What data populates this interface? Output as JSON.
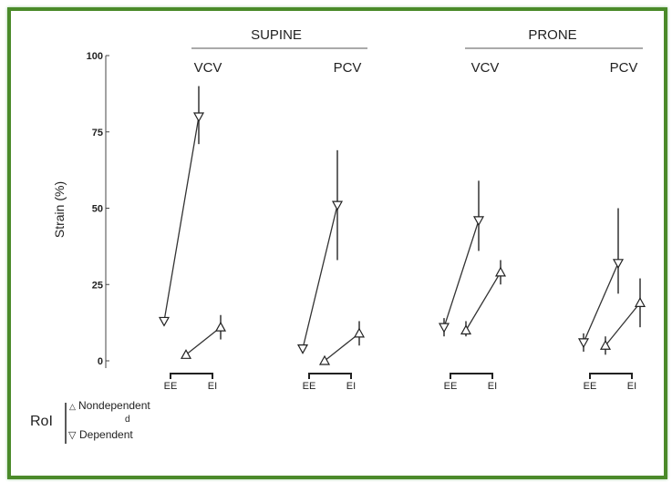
{
  "chart_data": {
    "type": "line",
    "ylabel": "Strain (%)",
    "ylim": [
      0,
      100
    ],
    "yticks": [
      "0",
      "25",
      "50",
      "75",
      "100"
    ],
    "x_categories": [
      "EE",
      "EI"
    ],
    "x_tick_labels": {
      "ee": "EE",
      "ei": "EI"
    },
    "groups": [
      {
        "position": "SUPINE",
        "mode": "VCV",
        "dependent": {
          "values": [
            13,
            80
          ],
          "err": [
            [
              13,
              13
            ],
            [
              71,
              90
            ]
          ]
        },
        "nondependent": {
          "values": [
            2,
            11
          ],
          "err": [
            [
              2,
              2
            ],
            [
              7,
              15
            ]
          ]
        }
      },
      {
        "position": "SUPINE",
        "mode": "PCV",
        "dependent": {
          "values": [
            4,
            51
          ],
          "err": [
            [
              4,
              4
            ],
            [
              33,
              69
            ]
          ]
        },
        "nondependent": {
          "values": [
            0,
            9
          ],
          "err": [
            [
              0,
              0
            ],
            [
              5,
              13
            ]
          ]
        }
      },
      {
        "position": "PRONE",
        "mode": "VCV",
        "dependent": {
          "values": [
            11,
            46
          ],
          "err": [
            [
              8,
              14
            ],
            [
              36,
              59
            ]
          ]
        },
        "nondependent": {
          "values": [
            10,
            29
          ],
          "err": [
            [
              8,
              13
            ],
            [
              25,
              33
            ]
          ]
        }
      },
      {
        "position": "PRONE",
        "mode": "PCV",
        "dependent": {
          "values": [
            6,
            32
          ],
          "err": [
            [
              3,
              9
            ],
            [
              22,
              50
            ]
          ]
        },
        "nondependent": {
          "values": [
            5,
            19
          ],
          "err": [
            [
              2,
              8
            ],
            [
              11,
              27
            ]
          ]
        }
      }
    ],
    "position_headers": [
      "SUPINE",
      "PRONE"
    ],
    "legend": {
      "title": "RoI",
      "items": [
        {
          "marker": "triangle-up",
          "label": "Nondependent"
        },
        {
          "marker": "triangle-down",
          "label": "Dependent"
        }
      ],
      "stray": "d",
      "placement": "bottom-left"
    }
  },
  "colors": {
    "frame": "#4b8a2a",
    "ink": "#222222"
  }
}
